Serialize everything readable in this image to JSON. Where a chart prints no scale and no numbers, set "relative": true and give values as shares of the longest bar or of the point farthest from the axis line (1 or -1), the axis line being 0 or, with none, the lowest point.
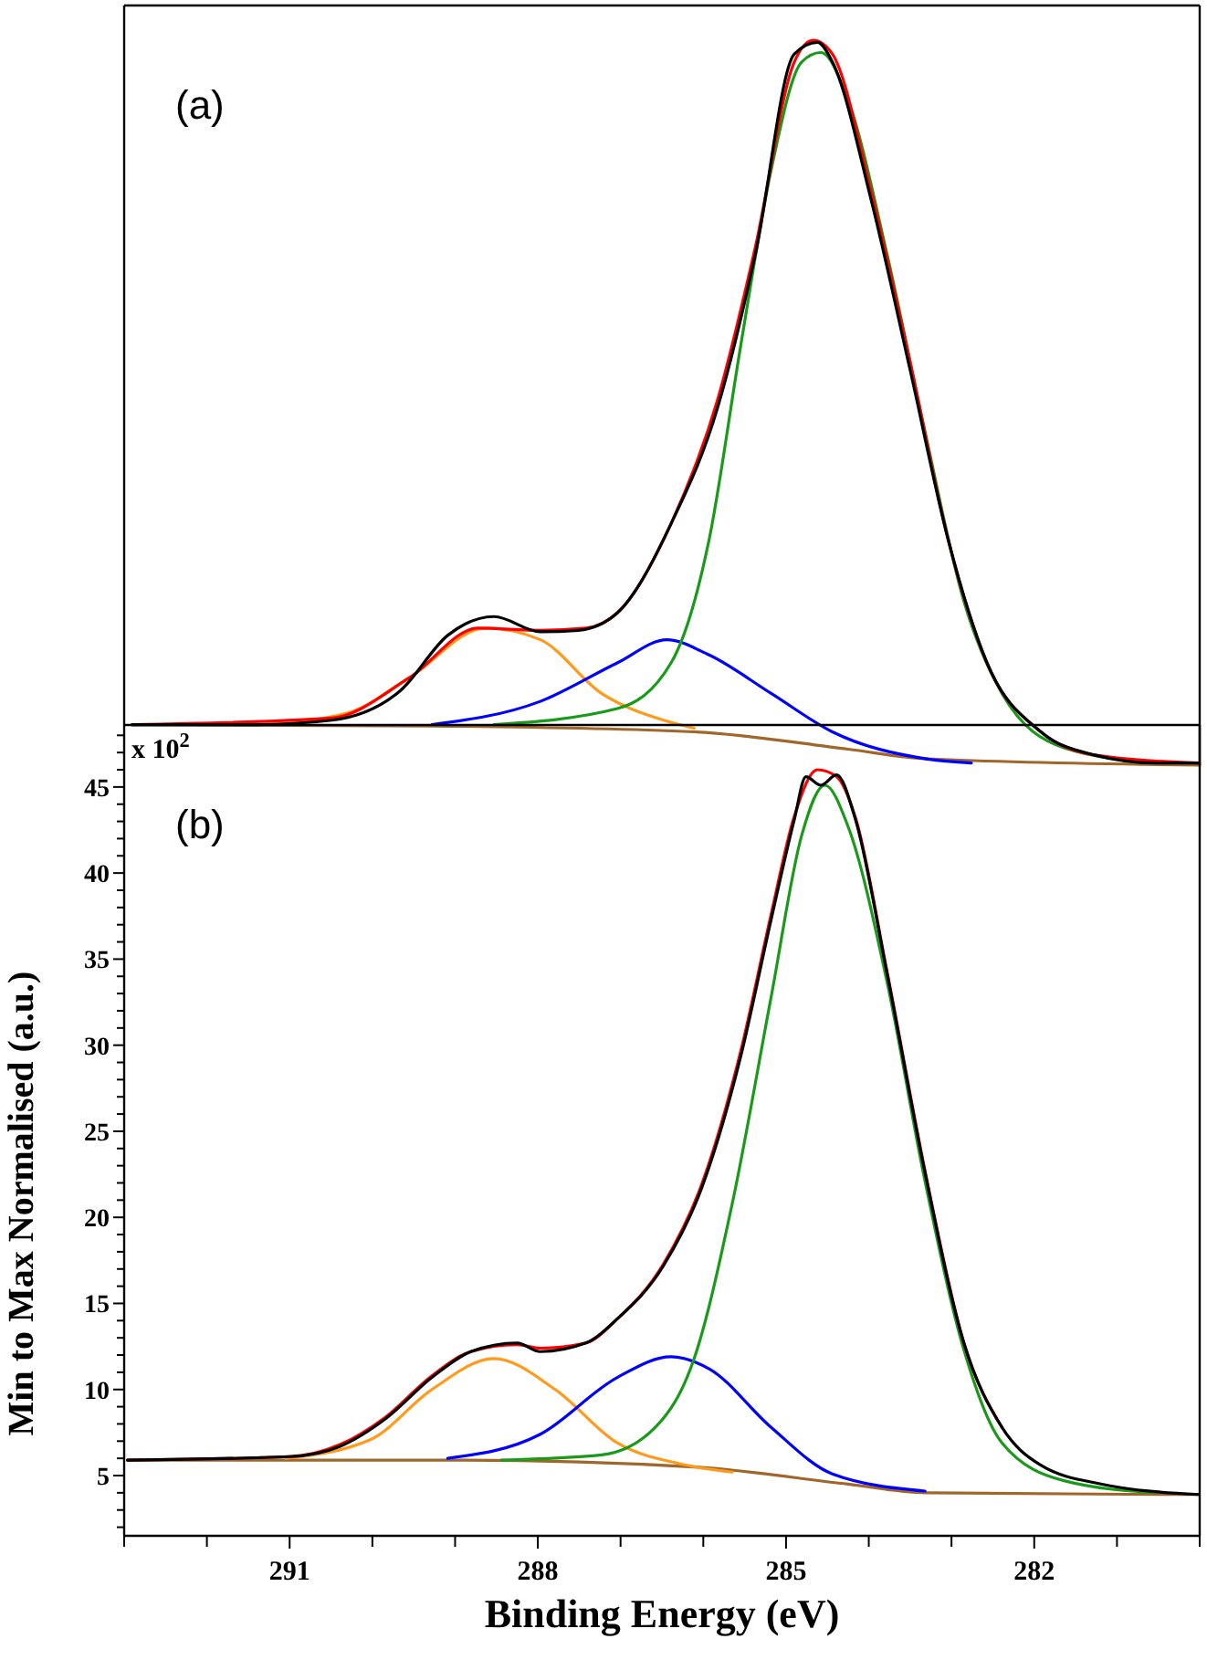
{
  "chart_data": [
    {
      "type": "line",
      "relative": true,
      "xlim": [
        293,
        280
      ],
      "tick_labels": false,
      "annotations": [
        "(a)"
      ],
      "series": [
        {
          "color": "#a0662a",
          "x": [
            292.91,
            289.28,
            286.11,
            284.25,
            283.32,
            280.0
          ],
          "values": [
            0.056,
            0.054,
            0.046,
            0.022,
            0.009,
            0
          ]
        },
        {
          "color": "#ff9a1a",
          "x": [
            291.33,
            290.3,
            289.56,
            288.63,
            287.97,
            287.23,
            286.48,
            286.11
          ],
          "values": [
            0.056,
            0.072,
            0.12,
            0.189,
            0.173,
            0.099,
            0.062,
            0.051
          ]
        },
        {
          "color": "#0000ff",
          "x": [
            289.28,
            287.97,
            287.04,
            286.44,
            285.93,
            285.18,
            284.44,
            283.32,
            282.76
          ],
          "values": [
            0.056,
            0.088,
            0.141,
            0.173,
            0.152,
            0.099,
            0.046,
            0.009,
            0.003
          ]
        },
        {
          "color": "#1a9a1a",
          "x": [
            288.53,
            287.04,
            286.39,
            285.93,
            285.55,
            285.18,
            284.81,
            284.58,
            284.25,
            283.78,
            283.32,
            282.85,
            282.39,
            281.64,
            280.53
          ],
          "values": [
            0.056,
            0.078,
            0.141,
            0.311,
            0.577,
            0.821,
            0.97,
            0.983,
            0.917,
            0.705,
            0.46,
            0.226,
            0.099,
            0.024,
            0.003
          ]
        },
        {
          "color": "#ff0000",
          "x": [
            292.9,
            290.49,
            289.56,
            288.72,
            287.97,
            287.42,
            287.04,
            286.39,
            285.83,
            285.37,
            284.9,
            284.67,
            284.44,
            283.97,
            283.5,
            283.04,
            282.57,
            281.92,
            281.27,
            280.01
          ],
          "values": [
            0.056,
            0.065,
            0.12,
            0.189,
            0.186,
            0.189,
            0.21,
            0.333,
            0.503,
            0.715,
            0.97,
            1.0,
            0.981,
            0.79,
            0.556,
            0.311,
            0.141,
            0.046,
            0.014,
            0.003
          ]
        },
        {
          "color": "#000000",
          "x": [
            292.9,
            291.4,
            290.49,
            289.65,
            289.09,
            288.53,
            287.97,
            287.51,
            287.04,
            286.39,
            285.83,
            285.37,
            284.9,
            284.62,
            284.44,
            283.97,
            283.5,
            283.04,
            282.57,
            281.92,
            281.27,
            280.53,
            280.01
          ],
          "values": [
            0.056,
            0.056,
            0.062,
            0.104,
            0.179,
            0.205,
            0.184,
            0.186,
            0.21,
            0.333,
            0.492,
            0.705,
            0.981,
            0.997,
            0.97,
            0.779,
            0.545,
            0.311,
            0.141,
            0.046,
            0.014,
            0.003,
            0.003
          ]
        }
      ]
    },
    {
      "type": "line",
      "xlabel": "Binding Energy (eV)",
      "ylabel": "Min to Max Normalised  (a.u.)",
      "annotations": [
        "(b)",
        "x 10$^{2}$"
      ],
      "xlim": [
        293,
        280
      ],
      "ylim": [
        1.5,
        48.6
      ],
      "xticks": [
        {
          "value": 293,
          "label": null
        },
        {
          "value": 292,
          "label": null
        },
        291,
        {
          "value": 290,
          "label": null
        },
        {
          "value": 289,
          "label": null
        },
        288,
        {
          "value": 287,
          "label": null
        },
        {
          "value": 286,
          "label": null
        },
        285,
        {
          "value": 284,
          "label": null
        },
        {
          "value": 283,
          "label": null
        },
        282,
        {
          "value": 281,
          "label": null
        },
        {
          "value": 280,
          "label": null
        }
      ],
      "yticks": [
        {
          "value": 2,
          "label": null
        },
        {
          "value": 3,
          "label": null
        },
        {
          "value": 4,
          "label": null
        },
        5,
        {
          "value": 6,
          "label": null
        },
        {
          "value": 7,
          "label": null
        },
        {
          "value": 8,
          "label": null
        },
        {
          "value": 9,
          "label": null
        },
        10,
        {
          "value": 11,
          "label": null
        },
        {
          "value": 12,
          "label": null
        },
        {
          "value": 13,
          "label": null
        },
        {
          "value": 14,
          "label": null
        },
        15,
        {
          "value": 16,
          "label": null
        },
        {
          "value": 17,
          "label": null
        },
        {
          "value": 18,
          "label": null
        },
        {
          "value": 19,
          "label": null
        },
        20,
        {
          "value": 21,
          "label": null
        },
        {
          "value": 22,
          "label": null
        },
        {
          "value": 23,
          "label": null
        },
        {
          "value": 24,
          "label": null
        },
        25,
        {
          "value": 26,
          "label": null
        },
        {
          "value": 27,
          "label": null
        },
        {
          "value": 28,
          "label": null
        },
        {
          "value": 29,
          "label": null
        },
        30,
        {
          "value": 31,
          "label": null
        },
        {
          "value": 32,
          "label": null
        },
        {
          "value": 33,
          "label": null
        },
        {
          "value": 34,
          "label": null
        },
        35,
        {
          "value": 36,
          "label": null
        },
        {
          "value": 37,
          "label": null
        },
        {
          "value": 38,
          "label": null
        },
        {
          "value": 39,
          "label": null
        },
        40,
        {
          "value": 41,
          "label": null
        },
        {
          "value": 42,
          "label": null
        },
        {
          "value": 43,
          "label": null
        },
        {
          "value": 44,
          "label": null
        },
        45,
        {
          "value": 46,
          "label": null
        },
        {
          "value": 47,
          "label": null
        },
        {
          "value": 48,
          "label": null
        }
      ],
      "series": [
        {
          "color": "#a0662a",
          "x": [
            292.96,
            288.9,
            286.11,
            284.25,
            283.32,
            280.01
          ],
          "values": [
            5.9,
            5.9,
            5.5,
            4.5,
            4.0,
            3.9
          ]
        },
        {
          "color": "#ff9a1a",
          "x": [
            291.05,
            290.02,
            289.28,
            288.53,
            287.79,
            287.04,
            286.3,
            285.65
          ],
          "values": [
            6.0,
            7.1,
            10.0,
            11.8,
            10.0,
            6.9,
            5.7,
            5.2
          ]
        },
        {
          "color": "#0000ff",
          "x": [
            289.09,
            287.97,
            287.04,
            286.39,
            285.93,
            285.18,
            284.44,
            283.32
          ],
          "values": [
            6.0,
            7.4,
            10.7,
            11.9,
            11.2,
            7.8,
            5.1,
            4.1
          ]
        },
        {
          "color": "#1a9a1a",
          "x": [
            288.44,
            287.23,
            286.58,
            286.11,
            285.65,
            285.18,
            284.81,
            284.53,
            284.25,
            283.78,
            283.32,
            282.85,
            282.39,
            281.64,
            280.53
          ],
          "values": [
            5.9,
            6.2,
            7.8,
            11.8,
            20.8,
            32.8,
            42.2,
            45.1,
            42.7,
            33.7,
            22.1,
            12.3,
            6.9,
            4.7,
            4.0
          ]
        },
        {
          "color": "#ff0000",
          "x": [
            292.96,
            291.0,
            290.39,
            289.84,
            289.28,
            288.81,
            288.25,
            287.97,
            287.42,
            287.04,
            286.48,
            286.02,
            285.55,
            285.18,
            284.9,
            284.62,
            284.39,
            284.16,
            283.78,
            283.32,
            282.85,
            282.39
          ],
          "values": [
            5.9,
            6.1,
            6.8,
            8.4,
            10.8,
            12.2,
            12.6,
            12.4,
            12.7,
            14.1,
            17.3,
            21.9,
            29.6,
            37.6,
            43.3,
            46.0,
            45.6,
            43.2,
            34.3,
            22.7,
            12.7,
            7.8
          ]
        },
        {
          "color": "#000000",
          "x": [
            292.96,
            291.0,
            290.39,
            289.84,
            289.28,
            288.81,
            288.25,
            287.97,
            287.42,
            287.04,
            286.48,
            286.02,
            285.55,
            285.18,
            284.9,
            284.76,
            284.58,
            284.39,
            284.16,
            283.78,
            283.32,
            282.85,
            282.39,
            281.92,
            281.18,
            280.01
          ],
          "values": [
            5.9,
            6.1,
            6.7,
            8.3,
            10.7,
            12.2,
            12.7,
            12.2,
            12.7,
            14.1,
            17.2,
            21.7,
            29.3,
            37.3,
            43.1,
            45.6,
            45.1,
            45.7,
            43.1,
            34.2,
            22.6,
            12.7,
            7.8,
            5.6,
            4.5,
            3.9
          ]
        }
      ]
    }
  ]
}
